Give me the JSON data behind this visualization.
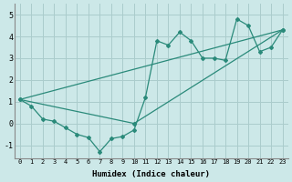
{
  "xlabel": "Humidex (Indice chaleur)",
  "background_color": "#cce8e8",
  "grid_color": "#aacccc",
  "line_color": "#2a8a7a",
  "xlim": [
    -0.5,
    23.5
  ],
  "ylim": [
    -1.6,
    5.5
  ],
  "xticks": [
    0,
    1,
    2,
    3,
    4,
    5,
    6,
    7,
    8,
    9,
    10,
    11,
    12,
    13,
    14,
    15,
    16,
    17,
    18,
    19,
    20,
    21,
    22,
    23
  ],
  "yticks": [
    -1,
    0,
    1,
    2,
    3,
    4,
    5
  ],
  "series1": [
    1.1,
    0.8,
    0.2,
    0.1,
    -0.2,
    -0.5,
    -0.65,
    -1.3,
    -0.7,
    -0.6,
    -0.3,
    1.2,
    3.8,
    3.6,
    4.2,
    3.8,
    3.0,
    3.0,
    2.9,
    4.8,
    4.5,
    3.3,
    3.5,
    4.3
  ],
  "line2": [
    [
      0,
      1.1
    ],
    [
      23,
      4.3
    ]
  ],
  "line3": [
    [
      0,
      1.1
    ],
    [
      10,
      0.0
    ],
    [
      23,
      4.3
    ]
  ]
}
